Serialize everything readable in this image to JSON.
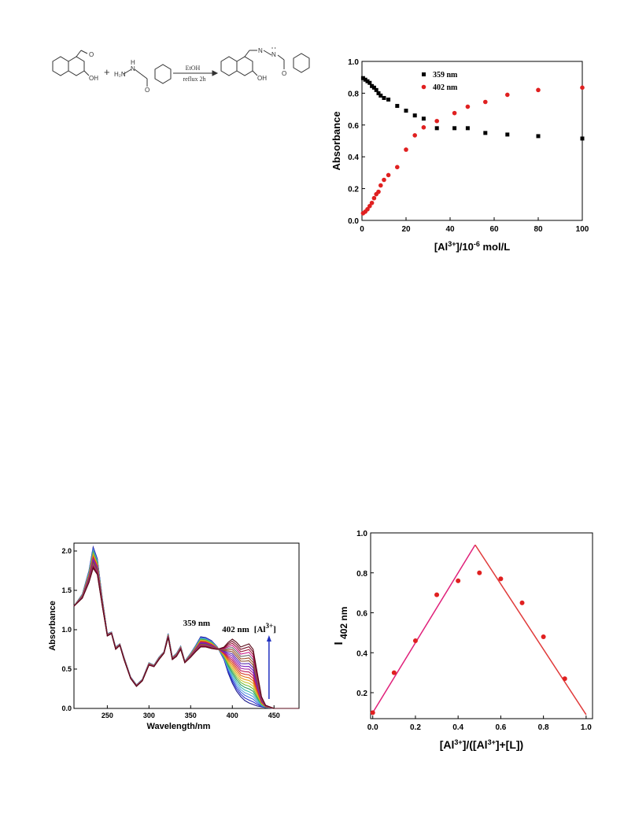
{
  "scheme": {
    "reagent_top": "EtOH",
    "reagent_bottom": "reflux 2h",
    "plus": "+",
    "labels": {
      "oh1": "OH",
      "o1": "O",
      "h2n": "H₂N",
      "nh": "H",
      "n": "N",
      "o2": "O",
      "oh2": "OH",
      "n2": "N",
      "nh2": "H",
      "n3": "N",
      "o3": "O"
    }
  },
  "chart_data": [
    {
      "type": "scatter",
      "xlabel": "[Al3+]/10-6 mol/L",
      "xlabel_parts": {
        "a": "[Al",
        "sup": "3+",
        "b": "]/10",
        "sup2": "-6",
        "c": " mol/L"
      },
      "ylabel": "Absorbance",
      "xlim": [
        0,
        100
      ],
      "ylim": [
        0,
        1.0
      ],
      "xticks": [
        "0",
        "20",
        "40",
        "60",
        "80",
        "100"
      ],
      "yticks": [
        "0.0",
        "0.2",
        "0.4",
        "0.6",
        "0.8",
        "1.0"
      ],
      "legend": "top-right",
      "series": [
        {
          "name": "359 nm",
          "color": "#000000",
          "marker": "square",
          "x": [
            0.5,
            1.5,
            2.5,
            3.5,
            4.5,
            5.5,
            6.5,
            7.5,
            8.5,
            10,
            12,
            16,
            20,
            24,
            28,
            34,
            42,
            48,
            56,
            66,
            80,
            100
          ],
          "y": [
            0.895,
            0.885,
            0.875,
            0.865,
            0.845,
            0.835,
            0.82,
            0.8,
            0.785,
            0.77,
            0.76,
            0.72,
            0.69,
            0.66,
            0.64,
            0.58,
            0.58,
            0.58,
            0.55,
            0.54,
            0.53,
            0.515
          ]
        },
        {
          "name": "402 nm",
          "color": "#e02020",
          "marker": "circle",
          "x": [
            0.5,
            1.5,
            2.5,
            3.5,
            4.5,
            5.5,
            6.5,
            7.5,
            8.5,
            10,
            12,
            16,
            20,
            24,
            28,
            34,
            42,
            48,
            56,
            66,
            80,
            100
          ],
          "y": [
            0.045,
            0.055,
            0.07,
            0.09,
            0.11,
            0.14,
            0.165,
            0.18,
            0.22,
            0.255,
            0.285,
            0.335,
            0.445,
            0.535,
            0.585,
            0.625,
            0.675,
            0.715,
            0.745,
            0.79,
            0.82,
            0.835
          ]
        }
      ]
    },
    {
      "type": "line",
      "xlabel": "Wavelength/nm",
      "ylabel": "Absorbance",
      "xlim": [
        210,
        480
      ],
      "ylim": [
        0,
        2.1
      ],
      "xticks": [
        "250",
        "300",
        "350",
        "400",
        "450"
      ],
      "yticks": [
        "0.0",
        "0.5",
        "1.0",
        "1.5",
        "2.0"
      ],
      "annotations": {
        "peak1": "359 nm",
        "peak2": "402 nm",
        "arrow_label": "[Al3+]",
        "arrow_label_parts": {
          "a": "[Al",
          "sup": "3+",
          "b": "]"
        }
      },
      "curve_count": 22,
      "colors": [
        "#1a1a8c",
        "#2b2bd0",
        "#3f6ad8",
        "#5aa0e0",
        "#3fbfb0",
        "#2a9a60",
        "#6fbf3a",
        "#c9c430",
        "#e8a020",
        "#e06a10",
        "#d83c2a",
        "#c01a5a",
        "#a020a0",
        "#7a20c0",
        "#5a2ab0",
        "#8a4a2a",
        "#a0522d",
        "#6b6b6b",
        "#c71585",
        "#9a1a3a",
        "#7a0f2a",
        "#5a0a1a"
      ],
      "profile_start": {
        "x": [
          210,
          220,
          228,
          233,
          238,
          244,
          250,
          255,
          260,
          265,
          270,
          278,
          285,
          292,
          300,
          306,
          312,
          318,
          323,
          328,
          333,
          338,
          343,
          350,
          356,
          362,
          368,
          375,
          382,
          390,
          395,
          400,
          405,
          410,
          415,
          420,
          425,
          430,
          435,
          440,
          450,
          460,
          480
        ],
        "y": [
          1.3,
          1.45,
          1.75,
          2.05,
          1.9,
          1.4,
          0.95,
          0.97,
          0.78,
          0.82,
          0.65,
          0.4,
          0.3,
          0.37,
          0.58,
          0.55,
          0.65,
          0.72,
          0.95,
          0.65,
          0.7,
          0.79,
          0.6,
          0.7,
          0.8,
          0.91,
          0.9,
          0.86,
          0.78,
          0.62,
          0.45,
          0.32,
          0.22,
          0.15,
          0.1,
          0.07,
          0.05,
          0.03,
          0.02,
          0.01,
          0.0,
          0.0,
          0.0
        ]
      },
      "profile_end": {
        "x": [
          210,
          220,
          228,
          233,
          238,
          244,
          250,
          255,
          260,
          265,
          270,
          278,
          285,
          292,
          300,
          306,
          312,
          318,
          323,
          328,
          333,
          338,
          343,
          350,
          356,
          362,
          368,
          375,
          382,
          390,
          395,
          400,
          405,
          410,
          415,
          420,
          425,
          430,
          435,
          440,
          450,
          460,
          480
        ],
        "y": [
          1.3,
          1.4,
          1.6,
          1.78,
          1.7,
          1.3,
          0.92,
          0.95,
          0.75,
          0.8,
          0.62,
          0.38,
          0.28,
          0.35,
          0.55,
          0.53,
          0.62,
          0.7,
          0.9,
          0.62,
          0.66,
          0.75,
          0.58,
          0.65,
          0.72,
          0.78,
          0.78,
          0.76,
          0.75,
          0.78,
          0.84,
          0.88,
          0.84,
          0.78,
          0.8,
          0.82,
          0.75,
          0.45,
          0.15,
          0.04,
          0.0,
          0.0,
          0.0
        ]
      }
    },
    {
      "type": "scatter",
      "xlabel": "[Al3+]/([Al3+]+[L])",
      "xlabel_parts": {
        "a": "[Al",
        "sup": "3+",
        "b": "]/([Al",
        "sup2": "3+",
        "c": "]+[L])"
      },
      "ylabel": "I 402 nm",
      "ylabel_parts": {
        "a": "I",
        "sub": "402 nm"
      },
      "xlim": [
        0,
        1.0
      ],
      "ylim": [
        0.1,
        1.0
      ],
      "xticks": [
        "0.0",
        "0.2",
        "0.4",
        "0.6",
        "0.8",
        "1.0"
      ],
      "yticks": [
        "0.2",
        "0.4",
        "0.6",
        "0.8",
        "1.0"
      ],
      "points": {
        "x": [
          0.0,
          0.1,
          0.2,
          0.3,
          0.4,
          0.5,
          0.6,
          0.7,
          0.8,
          0.9
        ],
        "y": [
          0.1,
          0.3,
          0.46,
          0.69,
          0.76,
          0.8,
          0.77,
          0.65,
          0.48,
          0.27
        ],
        "color": "#e02020"
      },
      "fit_left": {
        "x": [
          0.0,
          0.48
        ],
        "y": [
          0.1,
          0.94
        ]
      },
      "fit_right": {
        "x": [
          0.48,
          1.0
        ],
        "y": [
          0.94,
          0.09
        ]
      }
    }
  ]
}
